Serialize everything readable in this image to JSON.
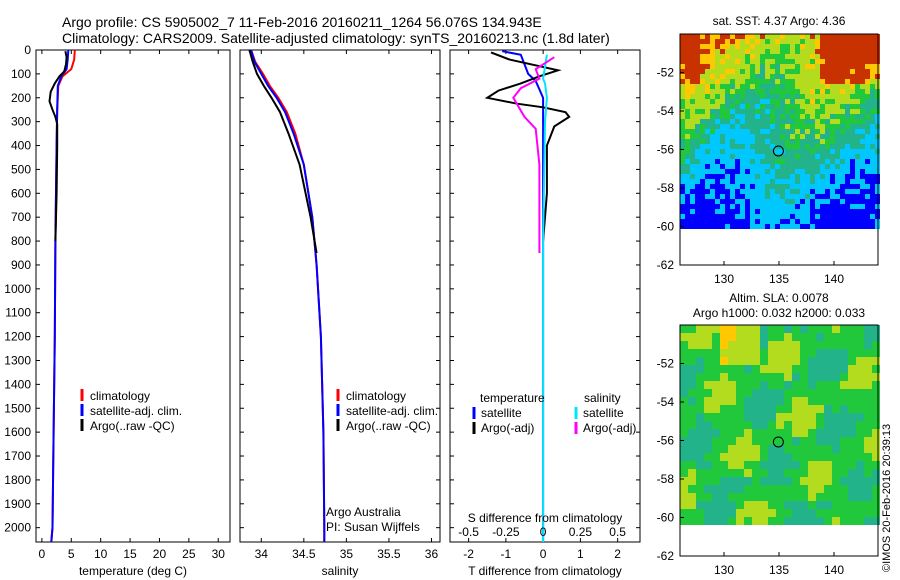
{
  "header": {
    "line1": "Argo profile: CS 5905002_7 11-Feb-2016 20160211_1264 56.076S 134.943E",
    "line2": "Climatology: CARS2009. Satellite-adjusted climatology: synTS_20160213.nc (1.8d later)"
  },
  "credit": "©IMOS 20-Feb-2016 20:39:13",
  "colors": {
    "climatology": "#ff0000",
    "satellite": "#0000ff",
    "argo": "#000000",
    "salinity_satellite": "#00e5ff",
    "salinity_argo": "#ff00ff"
  },
  "chart_data": [
    {
      "type": "line",
      "xlabel": "temperature (deg C)",
      "xlim": [
        -1,
        32
      ],
      "xticks": [
        "0",
        "5",
        "10",
        "15",
        "20",
        "25",
        "30"
      ],
      "xtick_values": [
        0,
        5,
        10,
        15,
        20,
        25,
        30
      ],
      "ylim": [
        0,
        2060
      ],
      "yticks": [
        "0",
        "100",
        "200",
        "300",
        "400",
        "500",
        "600",
        "700",
        "800",
        "900",
        "1000",
        "1100",
        "1200",
        "1300",
        "1400",
        "1500",
        "1600",
        "1700",
        "1800",
        "1900",
        "2000"
      ],
      "ytick_values": [
        0,
        100,
        200,
        300,
        400,
        500,
        600,
        700,
        800,
        900,
        1000,
        1100,
        1200,
        1300,
        1400,
        1500,
        1600,
        1700,
        1800,
        1900,
        2000
      ],
      "legend": [
        "climatology",
        "satellite-adj. clim.",
        "Argo(..raw -QC)"
      ],
      "series": [
        {
          "name": "climatology",
          "color": "#ff0000",
          "x": [
            5.6,
            5.5,
            5.0,
            3.5,
            2.8,
            2.6,
            2.5,
            2.4,
            2.3,
            2.2,
            2.0,
            1.8,
            1.6
          ],
          "y": [
            0,
            40,
            80,
            110,
            150,
            250,
            400,
            600,
            800,
            1200,
            1600,
            2000,
            2060
          ]
        },
        {
          "name": "satellite-adj. clim.",
          "color": "#0000ff",
          "x": [
            4.5,
            4.4,
            4.2,
            3.3,
            2.7,
            2.6,
            2.5,
            2.4,
            2.3,
            2.2,
            2.0,
            1.8,
            1.6
          ],
          "y": [
            0,
            40,
            80,
            110,
            150,
            250,
            400,
            600,
            800,
            1200,
            1600,
            2000,
            2060
          ]
        },
        {
          "name": "Argo(..raw -QC)",
          "color": "#000000",
          "x": [
            4.0,
            4.2,
            4.1,
            3.8,
            3.0,
            2.2,
            1.5,
            1.3,
            1.8,
            2.3,
            2.6,
            2.6,
            2.5,
            2.3
          ],
          "y": [
            5,
            30,
            60,
            90,
            110,
            140,
            175,
            215,
            250,
            280,
            310,
            400,
            600,
            800
          ]
        }
      ]
    },
    {
      "type": "line",
      "xlabel": "salinity",
      "xlim": [
        33.75,
        36.1
      ],
      "xticks": [
        "34",
        "34.5",
        "35",
        "35.5",
        "36"
      ],
      "xtick_values": [
        34,
        34.5,
        35,
        35.5,
        36
      ],
      "ylim": [
        0,
        2060
      ],
      "legend": [
        "climatology",
        "satellite-adj. clim.",
        "Argo(..raw -QC)"
      ],
      "annotation": [
        "Argo Australia",
        "PI: Susan Wijffels"
      ],
      "series": [
        {
          "name": "climatology",
          "color": "#ff0000",
          "x": [
            33.88,
            33.93,
            34.02,
            34.1,
            34.2,
            34.3,
            34.4,
            34.5,
            34.6,
            34.65,
            34.7,
            34.73,
            34.74,
            34.74
          ],
          "y": [
            0,
            50,
            100,
            150,
            200,
            260,
            350,
            480,
            700,
            900,
            1200,
            1600,
            2000,
            2060
          ]
        },
        {
          "name": "satellite-adj. clim.",
          "color": "#0000ff",
          "x": [
            33.88,
            33.92,
            34.0,
            34.08,
            34.18,
            34.28,
            34.38,
            34.5,
            34.6,
            34.65,
            34.7,
            34.73,
            34.74,
            34.74
          ],
          "y": [
            0,
            50,
            100,
            150,
            200,
            260,
            350,
            480,
            700,
            900,
            1200,
            1600,
            2000,
            2060
          ]
        },
        {
          "name": "Argo(..raw -QC)",
          "color": "#000000",
          "x": [
            33.86,
            33.9,
            33.95,
            34.03,
            34.12,
            34.22,
            34.32,
            34.45,
            34.58,
            34.65
          ],
          "y": [
            0,
            50,
            100,
            150,
            200,
            260,
            350,
            480,
            700,
            850
          ]
        }
      ]
    },
    {
      "type": "line",
      "xlabel": "T difference from climatology",
      "xlabel_top": "S difference from climatology",
      "xlim": [
        -2.5,
        2.6
      ],
      "xticks": [
        "-2",
        "-1",
        "0",
        "1",
        "2"
      ],
      "xtick_values": [
        -2,
        -1,
        0,
        1,
        2
      ],
      "xticks_top": [
        "-0.5",
        "-0.25",
        "0",
        "0.25",
        "0.5"
      ],
      "xticks_top_values": [
        -2,
        -1,
        0,
        1,
        2
      ],
      "ylim": [
        0,
        2060
      ],
      "legend_headers": [
        "temperature",
        "salinity"
      ],
      "legend": [
        "satellite",
        "Argo(-adj)",
        "satellite",
        "Argo(-adj)"
      ],
      "series": [
        {
          "name": "satellite",
          "color": "#0000ff",
          "x": [
            -1.1,
            -0.6,
            -0.5,
            -0.4,
            -0.2,
            0.0,
            0.0,
            0.0,
            0.0,
            0.0
          ],
          "y": [
            5,
            20,
            60,
            100,
            130,
            200,
            400,
            800,
            1500,
            2060
          ]
        },
        {
          "name": "Argo(-adj)",
          "color": "#000000",
          "x": [
            -1.4,
            -0.9,
            0.4,
            -0.1,
            -0.6,
            -1.2,
            -1.5,
            -0.7,
            0.0,
            0.6,
            0.7,
            0.3,
            0.1,
            0.1,
            0.0
          ],
          "y": [
            10,
            40,
            85,
            110,
            140,
            170,
            200,
            225,
            240,
            260,
            280,
            320,
            400,
            600,
            800
          ]
        },
        {
          "name": "satellite",
          "color": "#00e5ff",
          "x": [
            0.1,
            0.0,
            0.05,
            0.1,
            0.05,
            0.0,
            0.0,
            0.0
          ],
          "y": [
            20,
            120,
            140,
            200,
            300,
            800,
            1500,
            2060
          ]
        },
        {
          "name": "Argo(-adj)",
          "color": "#ff00ff",
          "x": [
            0.3,
            -0.2,
            -0.1,
            -0.6,
            -0.8,
            -0.5,
            -0.2,
            -0.1,
            -0.1
          ],
          "y": [
            30,
            80,
            120,
            160,
            200,
            280,
            330,
            480,
            850
          ]
        }
      ]
    },
    {
      "type": "heatmap",
      "title": "sat. SST: 4.37  Argo: 4.36",
      "xlim": [
        126,
        144
      ],
      "ylim": [
        -62,
        -50
      ],
      "xticks": [
        "130",
        "135",
        "140"
      ],
      "xtick_values": [
        130,
        135,
        140
      ],
      "yticks": [
        "-52",
        "-54",
        "-56",
        "-58",
        "-60",
        "-62"
      ],
      "ytick_values": [
        -52,
        -54,
        -56,
        -58,
        -60,
        -62
      ],
      "marker": {
        "lon": 134.943,
        "lat": -56.076
      }
    },
    {
      "type": "heatmap",
      "title": "Altim. SLA: 0.0078",
      "subtitle": "Argo h1000: 0.032 h2000: 0.033",
      "xlim": [
        126,
        144
      ],
      "ylim": [
        -62,
        -50
      ],
      "xticks": [
        "130",
        "135",
        "140"
      ],
      "xtick_values": [
        130,
        135,
        140
      ],
      "yticks": [
        "-52",
        "-54",
        "-56",
        "-58",
        "-60",
        "-62"
      ],
      "ytick_values": [
        -52,
        -54,
        -56,
        -58,
        -60,
        -62
      ],
      "marker": {
        "lon": 134.943,
        "lat": -56.076
      }
    }
  ]
}
